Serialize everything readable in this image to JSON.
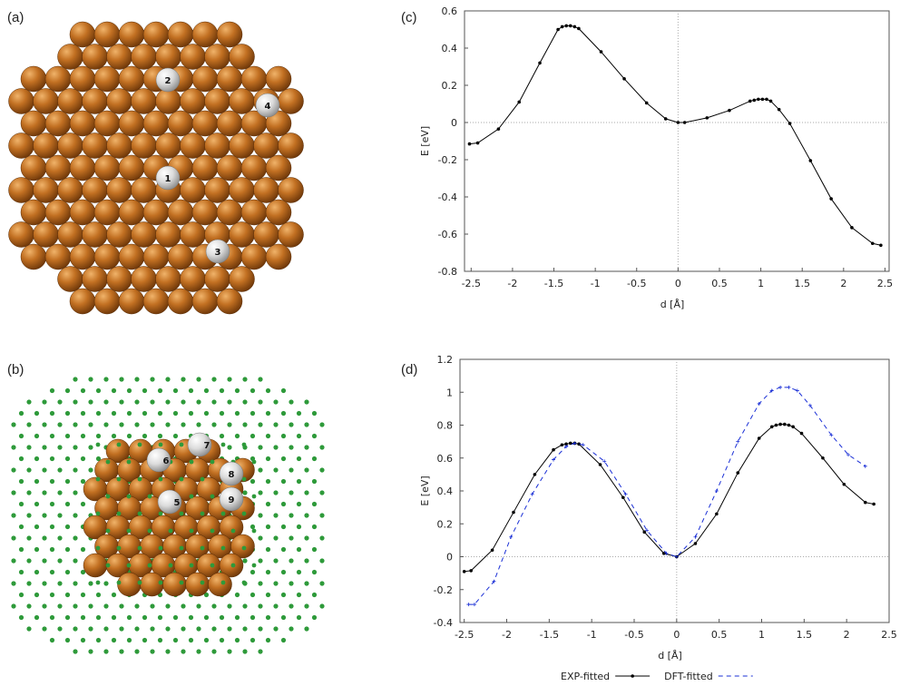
{
  "panel_labels": [
    "(a)",
    "(b)",
    "(c)",
    "(d)"
  ],
  "atoms_a": [
    "1",
    "2",
    "3",
    "4"
  ],
  "atoms_b": [
    "5",
    "6",
    "7",
    "8",
    "9"
  ],
  "chart_data": [
    {
      "type": "line",
      "xlabel": "d [Å]",
      "ylabel": "E [eV]",
      "xlim": [
        -2.58,
        2.55
      ],
      "ylim": [
        -0.8,
        0.6
      ],
      "xticks": [
        -2.5,
        -2,
        -1.5,
        -1,
        -0.5,
        0,
        0.5,
        1,
        1.5,
        2,
        2.5
      ],
      "yticks": [
        -0.8,
        -0.6,
        -0.4,
        -0.2,
        0,
        0.2,
        0.4,
        0.6
      ],
      "grid": false,
      "zero_lines": true,
      "series": [
        {
          "color": "#000000",
          "dash": false,
          "marker": "circle",
          "x": [
            -2.52,
            -2.42,
            -2.17,
            -1.92,
            -1.67,
            -1.45,
            -1.4,
            -1.35,
            -1.3,
            -1.25,
            -1.2,
            -0.93,
            -0.65,
            -0.38,
            -0.15,
            0,
            0.08,
            0.35,
            0.62,
            0.87,
            0.92,
            0.97,
            1.02,
            1.07,
            1.12,
            1.22,
            1.35,
            1.6,
            1.85,
            2.1,
            2.35,
            2.45
          ],
          "values": [
            -0.115,
            -0.11,
            -0.035,
            0.11,
            0.32,
            0.5,
            0.515,
            0.52,
            0.52,
            0.515,
            0.505,
            0.38,
            0.235,
            0.105,
            0.02,
            0,
            0,
            0.025,
            0.065,
            0.115,
            0.12,
            0.125,
            0.125,
            0.125,
            0.115,
            0.07,
            -0.005,
            -0.205,
            -0.41,
            -0.565,
            -0.65,
            -0.66
          ]
        }
      ]
    },
    {
      "type": "line",
      "xlabel": "d [Å]",
      "ylabel": "E [eV]",
      "xlim": [
        -2.55,
        2.5
      ],
      "ylim": [
        -0.4,
        1.2
      ],
      "xticks": [
        -2.5,
        -2,
        -1.5,
        -1,
        -0.5,
        0,
        0.5,
        1,
        1.5,
        2,
        2.5
      ],
      "yticks": [
        -0.4,
        -0.2,
        0,
        0.2,
        0.4,
        0.6,
        0.8,
        1,
        1.2
      ],
      "grid": false,
      "zero_lines": true,
      "legend": "bottom",
      "series": [
        {
          "name": "EXP-fitted",
          "color": "#000000",
          "dash": false,
          "marker": "circle",
          "x": [
            -2.5,
            -2.42,
            -2.17,
            -1.92,
            -1.67,
            -1.45,
            -1.35,
            -1.3,
            -1.25,
            -1.2,
            -1.15,
            -0.9,
            -0.63,
            -0.38,
            -0.15,
            0,
            0.22,
            0.47,
            0.72,
            0.97,
            1.12,
            1.17,
            1.22,
            1.27,
            1.32,
            1.37,
            1.47,
            1.72,
            1.97,
            2.22,
            2.32
          ],
          "values": [
            -0.09,
            -0.085,
            0.04,
            0.27,
            0.5,
            0.65,
            0.68,
            0.685,
            0.69,
            0.69,
            0.685,
            0.56,
            0.36,
            0.15,
            0.02,
            0,
            0.08,
            0.26,
            0.51,
            0.72,
            0.79,
            0.8,
            0.805,
            0.805,
            0.8,
            0.79,
            0.75,
            0.6,
            0.44,
            0.33,
            0.32
          ]
        },
        {
          "name": "DFT-fitted",
          "color": "#1a2fd6",
          "dash": true,
          "marker": "plus",
          "x": [
            -2.45,
            -2.38,
            -2.15,
            -1.95,
            -1.7,
            -1.45,
            -1.3,
            -1.2,
            -1.1,
            -0.85,
            -0.6,
            -0.35,
            -0.12,
            0,
            0.22,
            0.47,
            0.72,
            0.97,
            1.12,
            1.22,
            1.32,
            1.42,
            1.57,
            1.82,
            2.02,
            2.22
          ],
          "values": [
            -0.29,
            -0.29,
            -0.15,
            0.12,
            0.38,
            0.59,
            0.67,
            0.69,
            0.68,
            0.58,
            0.38,
            0.16,
            0.02,
            0,
            0.12,
            0.4,
            0.7,
            0.93,
            1.01,
            1.03,
            1.03,
            1.01,
            0.92,
            0.74,
            0.62,
            0.55
          ]
        }
      ]
    }
  ]
}
